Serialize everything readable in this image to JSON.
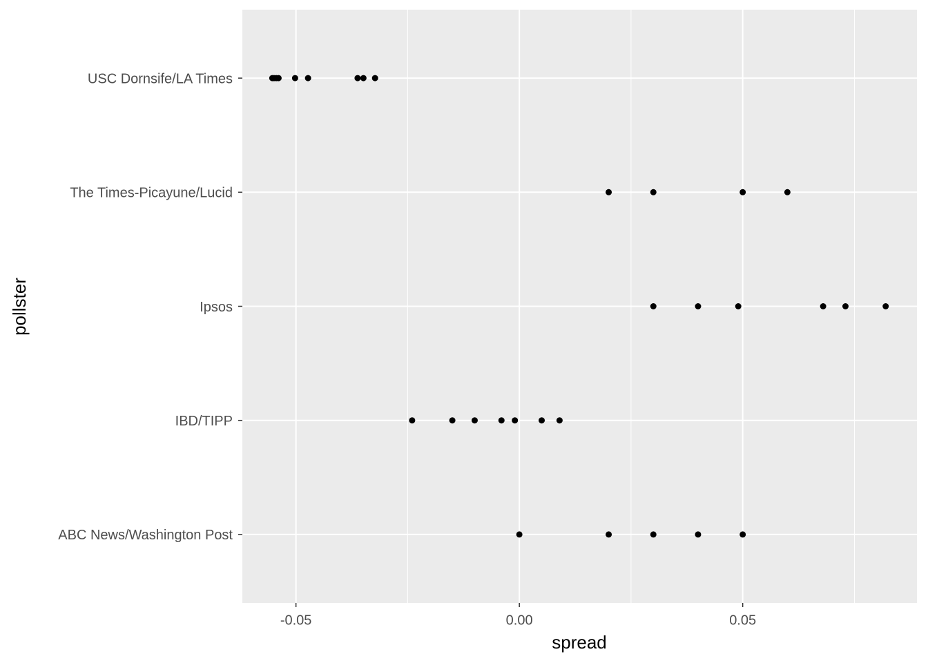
{
  "chart_data": {
    "type": "strip",
    "x_label": "spread",
    "y_label": "pollster",
    "categories": [
      "ABC News/Washington Post",
      "IBD/TIPP",
      "Ipsos",
      "The Times-Picayune/Lucid",
      "USC Dornsife/LA Times"
    ],
    "values": [
      [
        0.0,
        0.02,
        0.03,
        0.04,
        0.05
      ],
      [
        -0.024,
        -0.015,
        -0.01,
        -0.004,
        -0.001,
        0.005,
        0.009
      ],
      [
        0.03,
        0.04,
        0.049,
        0.068,
        0.073,
        0.082
      ],
      [
        0.02,
        0.03,
        0.05,
        0.06
      ],
      [
        -0.0553,
        -0.0549,
        -0.0544,
        -0.0539,
        -0.0502,
        -0.0473,
        -0.0362,
        -0.0349,
        -0.0323
      ]
    ],
    "color": "#000000",
    "xlim": [
      -0.062,
      0.089
    ],
    "xticks": [
      {
        "value": -0.05,
        "label": "-0.05"
      },
      {
        "value": 0,
        "label": "0.00"
      },
      {
        "value": 0.05,
        "label": "0.05"
      }
    ],
    "minor_xticks": [
      -0.025,
      0.025,
      0.075
    ],
    "grid": true
  }
}
